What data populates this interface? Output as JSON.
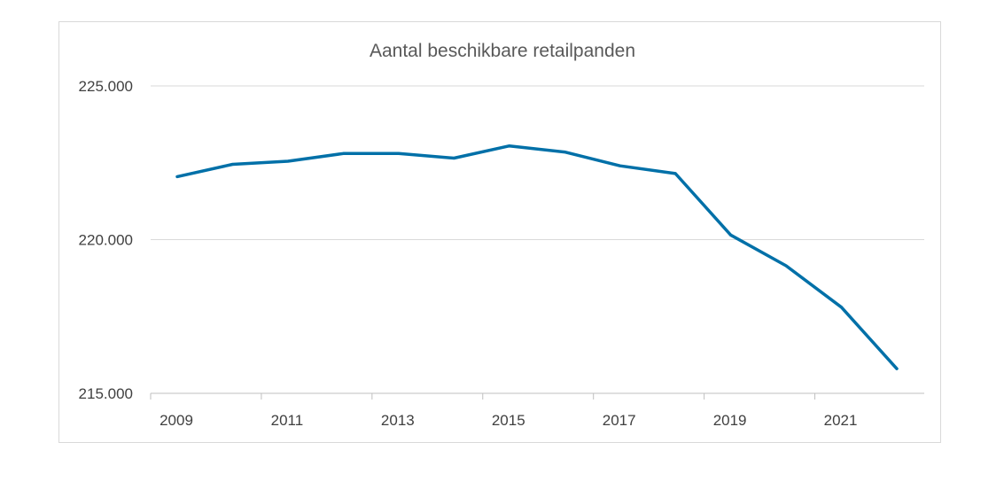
{
  "chart_data": {
    "type": "line",
    "title": "Aantal beschikbare retailpanden",
    "xlabel": "",
    "ylabel": "",
    "x": [
      2009,
      2010,
      2011,
      2012,
      2013,
      2014,
      2015,
      2016,
      2017,
      2018,
      2019,
      2020,
      2021,
      2022
    ],
    "x_tick_labels": [
      "2009",
      "2011",
      "2013",
      "2015",
      "2017",
      "2019",
      "2021"
    ],
    "x_tick_years": [
      2009,
      2011,
      2013,
      2015,
      2017,
      2019,
      2021
    ],
    "y_ticks": [
      215000,
      220000,
      225000
    ],
    "y_tick_labels": [
      "215.000",
      "220.000",
      "225.000"
    ],
    "ylim": [
      215000,
      225000
    ],
    "grid": true,
    "legend": false,
    "series": [
      {
        "color": "#0070a8",
        "values": [
          222050,
          222450,
          222550,
          222800,
          222800,
          222650,
          223050,
          222850,
          222400,
          222150,
          220150,
          219150,
          217800,
          215800
        ]
      }
    ]
  }
}
